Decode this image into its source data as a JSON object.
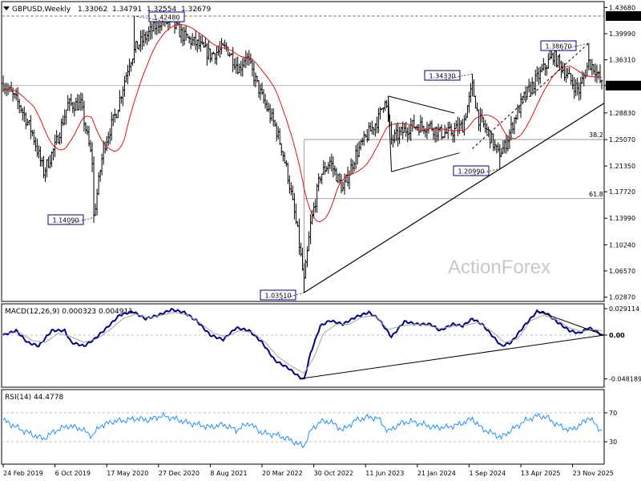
{
  "chart_data": [
    {
      "type": "candlestick",
      "title": "GBPUSD,Weekly",
      "ohlc": {
        "open": "1.33062",
        "high": "1.34791",
        "low": "1.32554",
        "close": "1.32679"
      },
      "watermark": "ActionForex",
      "ylim": [
        1.0,
        1.46
      ],
      "y_ticks": [
        "1.43680",
        "1.39990",
        "1.36310",
        "1.32679",
        "1.28830",
        "1.25070",
        "1.21350",
        "1.17720",
        "1.13990",
        "1.10240",
        "1.06570",
        "1.02870"
      ],
      "x_ticks": [
        "24 Feb 2019",
        "6 Oct 2019",
        "17 May 2020",
        "27 Dec 2020",
        "8 Aug 2021",
        "20 Mar 2022",
        "30 Oct 2022",
        "11 Jun 2023",
        "21 Jan 2024",
        "1 Sep 2024",
        "13 Apr 2025",
        "23 Nov 2025"
      ],
      "current_price": "1.32679",
      "resistance_label": "1.42480",
      "annotations": [
        {
          "label": "1.42480",
          "price": 1.4248,
          "week": 81
        },
        {
          "label": "1.14090",
          "price": 1.1409,
          "week": 56
        },
        {
          "label": "1.03510",
          "price": 1.0351,
          "week": 186
        },
        {
          "label": "1.34330",
          "price": 1.3433,
          "week": 290
        },
        {
          "label": "1.20990",
          "price": 1.2099,
          "week": 307
        },
        {
          "label": "1.38670",
          "price": 1.3867,
          "week": 362
        }
      ],
      "fib_levels": [
        {
          "label": "38.2",
          "price": 1.2508
        },
        {
          "label": "61.8",
          "price": 1.1675
        }
      ],
      "moving_average_color": "#e01010",
      "candle_color": "#000000",
      "anchors": [
        [
          0,
          1.33
        ],
        [
          10,
          1.3
        ],
        [
          18,
          1.26
        ],
        [
          25,
          1.205
        ],
        [
          32,
          1.24
        ],
        [
          40,
          1.3
        ],
        [
          48,
          1.3
        ],
        [
          55,
          1.22
        ],
        [
          56,
          1.142
        ],
        [
          62,
          1.24
        ],
        [
          70,
          1.29
        ],
        [
          78,
          1.36
        ],
        [
          82,
          1.38
        ],
        [
          90,
          1.4
        ],
        [
          98,
          1.42
        ],
        [
          106,
          1.41
        ],
        [
          112,
          1.395
        ],
        [
          120,
          1.385
        ],
        [
          128,
          1.37
        ],
        [
          138,
          1.38
        ],
        [
          146,
          1.35
        ],
        [
          150,
          1.37
        ],
        [
          160,
          1.31
        ],
        [
          168,
          1.27
        ],
        [
          172,
          1.24
        ],
        [
          176,
          1.2
        ],
        [
          182,
          1.12
        ],
        [
          186,
          1.05
        ],
        [
          190,
          1.13
        ],
        [
          196,
          1.2
        ],
        [
          202,
          1.22
        ],
        [
          210,
          1.18
        ],
        [
          218,
          1.23
        ],
        [
          226,
          1.26
        ],
        [
          232,
          1.28
        ],
        [
          236,
          1.31
        ],
        [
          240,
          1.25
        ],
        [
          246,
          1.26
        ],
        [
          252,
          1.27
        ],
        [
          258,
          1.27
        ],
        [
          264,
          1.27
        ],
        [
          270,
          1.26
        ],
        [
          276,
          1.26
        ],
        [
          284,
          1.27
        ],
        [
          290,
          1.325
        ],
        [
          294,
          1.28
        ],
        [
          300,
          1.26
        ],
        [
          306,
          1.23
        ],
        [
          310,
          1.24
        ],
        [
          316,
          1.28
        ],
        [
          322,
          1.31
        ],
        [
          328,
          1.33
        ],
        [
          334,
          1.35
        ],
        [
          340,
          1.37
        ],
        [
          346,
          1.35
        ],
        [
          352,
          1.33
        ],
        [
          356,
          1.32
        ],
        [
          362,
          1.36
        ],
        [
          366,
          1.35
        ],
        [
          370,
          1.327
        ]
      ]
    },
    {
      "type": "line",
      "title": "MACD(12,26,9) 0.000323 0.004911",
      "ylim": [
        -0.0489,
        0.0291
      ],
      "y_ticks": [
        "0.029114",
        "0.00",
        "-0.048189"
      ],
      "series": [
        {
          "name": "MACD",
          "color": "#00008b",
          "points": [
            [
              0,
              0.0
            ],
            [
              8,
              0.005
            ],
            [
              15,
              -0.008
            ],
            [
              22,
              -0.012
            ],
            [
              30,
              0.005
            ],
            [
              38,
              0.005
            ],
            [
              42,
              -0.008
            ],
            [
              50,
              -0.012
            ],
            [
              56,
              -0.005
            ],
            [
              64,
              0.008
            ],
            [
              72,
              0.022
            ],
            [
              80,
              0.026
            ],
            [
              88,
              0.018
            ],
            [
              96,
              0.022
            ],
            [
              104,
              0.028
            ],
            [
              112,
              0.025
            ],
            [
              120,
              0.015
            ],
            [
              128,
              0.0
            ],
            [
              136,
              -0.005
            ],
            [
              144,
              0.008
            ],
            [
              152,
              0.005
            ],
            [
              160,
              -0.008
            ],
            [
              168,
              -0.028
            ],
            [
              176,
              -0.036
            ],
            [
              183,
              -0.046
            ],
            [
              186,
              -0.049
            ],
            [
              190,
              -0.02
            ],
            [
              196,
              0.01
            ],
            [
              202,
              0.016
            ],
            [
              210,
              0.012
            ],
            [
              218,
              0.02
            ],
            [
              226,
              0.025
            ],
            [
              232,
              0.018
            ],
            [
              240,
              -0.002
            ],
            [
              248,
              0.015
            ],
            [
              256,
              0.012
            ],
            [
              264,
              0.012
            ],
            [
              270,
              0.005
            ],
            [
              278,
              0.012
            ],
            [
              284,
              0.01
            ],
            [
              290,
              0.018
            ],
            [
              296,
              0.012
            ],
            [
              302,
              0.0
            ],
            [
              308,
              -0.012
            ],
            [
              314,
              -0.008
            ],
            [
              322,
              0.01
            ],
            [
              330,
              0.026
            ],
            [
              336,
              0.024
            ],
            [
              342,
              0.015
            ],
            [
              350,
              0.005
            ],
            [
              356,
              0.002
            ],
            [
              362,
              0.008
            ],
            [
              366,
              0.005
            ],
            [
              370,
              0.000323
            ]
          ]
        },
        {
          "name": "Signal",
          "color": "#a0a0a0",
          "points": [
            [
              0,
              0.002
            ],
            [
              10,
              0.003
            ],
            [
              18,
              -0.006
            ],
            [
              26,
              -0.008
            ],
            [
              34,
              0.002
            ],
            [
              42,
              -0.002
            ],
            [
              50,
              -0.008
            ],
            [
              58,
              -0.004
            ],
            [
              66,
              0.006
            ],
            [
              74,
              0.018
            ],
            [
              82,
              0.023
            ],
            [
              90,
              0.019
            ],
            [
              98,
              0.022
            ],
            [
              106,
              0.025
            ],
            [
              114,
              0.022
            ],
            [
              122,
              0.013
            ],
            [
              130,
              0.002
            ],
            [
              138,
              -0.002
            ],
            [
              146,
              0.005
            ],
            [
              154,
              0.003
            ],
            [
              162,
              -0.008
            ],
            [
              170,
              -0.024
            ],
            [
              178,
              -0.034
            ],
            [
              186,
              -0.042
            ],
            [
              192,
              -0.025
            ],
            [
              198,
              0.002
            ],
            [
              206,
              0.012
            ],
            [
              214,
              0.012
            ],
            [
              222,
              0.02
            ],
            [
              230,
              0.021
            ],
            [
              238,
              0.006
            ],
            [
              246,
              0.01
            ],
            [
              254,
              0.012
            ],
            [
              262,
              0.011
            ],
            [
              270,
              0.007
            ],
            [
              278,
              0.01
            ],
            [
              286,
              0.011
            ],
            [
              294,
              0.014
            ],
            [
              302,
              0.004
            ],
            [
              310,
              -0.008
            ],
            [
              318,
              -0.004
            ],
            [
              326,
              0.016
            ],
            [
              334,
              0.022
            ],
            [
              342,
              0.017
            ],
            [
              350,
              0.008
            ],
            [
              358,
              0.004
            ],
            [
              364,
              0.006
            ],
            [
              370,
              0.004911
            ]
          ]
        }
      ]
    },
    {
      "type": "line",
      "title": "RSI(14) 44.4778",
      "ylim": [
        0,
        100
      ],
      "y_ticks": [
        "70",
        "30"
      ],
      "series": [
        {
          "name": "RSI",
          "color": "#1e90ff",
          "points": [
            [
              0,
              60
            ],
            [
              10,
              48
            ],
            [
              18,
              40
            ],
            [
              25,
              34
            ],
            [
              32,
              45
            ],
            [
              40,
              52
            ],
            [
              48,
              48
            ],
            [
              55,
              38
            ],
            [
              60,
              52
            ],
            [
              68,
              58
            ],
            [
              76,
              60
            ],
            [
              82,
              62
            ],
            [
              90,
              60
            ],
            [
              98,
              66
            ],
            [
              106,
              62
            ],
            [
              114,
              56
            ],
            [
              120,
              54
            ],
            [
              128,
              50
            ],
            [
              136,
              54
            ],
            [
              144,
              46
            ],
            [
              152,
              56
            ],
            [
              160,
              42
            ],
            [
              168,
              40
            ],
            [
              176,
              34
            ],
            [
              183,
              26
            ],
            [
              186,
              24
            ],
            [
              190,
              45
            ],
            [
              196,
              58
            ],
            [
              202,
              58
            ],
            [
              210,
              46
            ],
            [
              218,
              60
            ],
            [
              226,
              64
            ],
            [
              232,
              62
            ],
            [
              238,
              44
            ],
            [
              246,
              56
            ],
            [
              252,
              58
            ],
            [
              260,
              54
            ],
            [
              266,
              50
            ],
            [
              274,
              50
            ],
            [
              282,
              54
            ],
            [
              290,
              62
            ],
            [
              296,
              48
            ],
            [
              302,
              42
            ],
            [
              308,
              36
            ],
            [
              314,
              46
            ],
            [
              322,
              58
            ],
            [
              330,
              66
            ],
            [
              336,
              64
            ],
            [
              342,
              54
            ],
            [
              350,
              46
            ],
            [
              356,
              52
            ],
            [
              362,
              64
            ],
            [
              366,
              54
            ],
            [
              370,
              44.4778
            ]
          ]
        }
      ]
    }
  ]
}
